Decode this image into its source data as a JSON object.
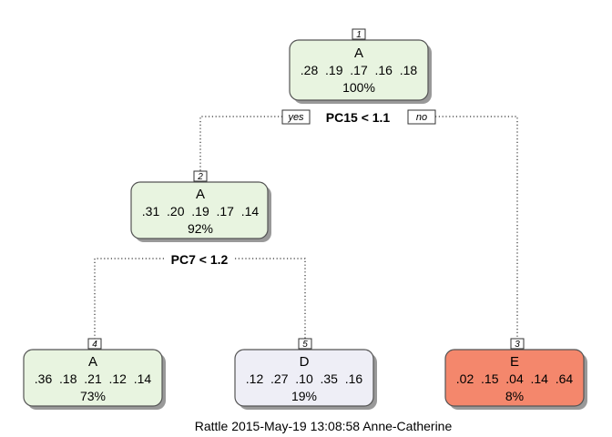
{
  "tree": {
    "nodes": [
      {
        "id": "1",
        "class": "A",
        "probs": ".28  .19  .17  .16  .18",
        "pct": "100%",
        "fill": "#e8f4e0"
      },
      {
        "id": "2",
        "class": "A",
        "probs": ".31  .20  .19  .17  .14",
        "pct": "92%",
        "fill": "#e8f4e0"
      },
      {
        "id": "3",
        "class": "E",
        "probs": ".02  .15  .04  .14  .64",
        "pct": "8%",
        "fill": "#f4876c"
      },
      {
        "id": "4",
        "class": "A",
        "probs": ".36  .18  .21  .12  .14",
        "pct": "73%",
        "fill": "#e8f4e0"
      },
      {
        "id": "5",
        "class": "D",
        "probs": ".12  .27  .10  .35  .16",
        "pct": "19%",
        "fill": "#eeeef6"
      }
    ],
    "splits": [
      {
        "label": "PC15 < 1.1"
      },
      {
        "label": "PC7 < 1.2"
      }
    ],
    "yes_label": "yes",
    "no_label": "no"
  },
  "caption": "Rattle 2015-May-19 13:08:58 Anne-Catherine"
}
